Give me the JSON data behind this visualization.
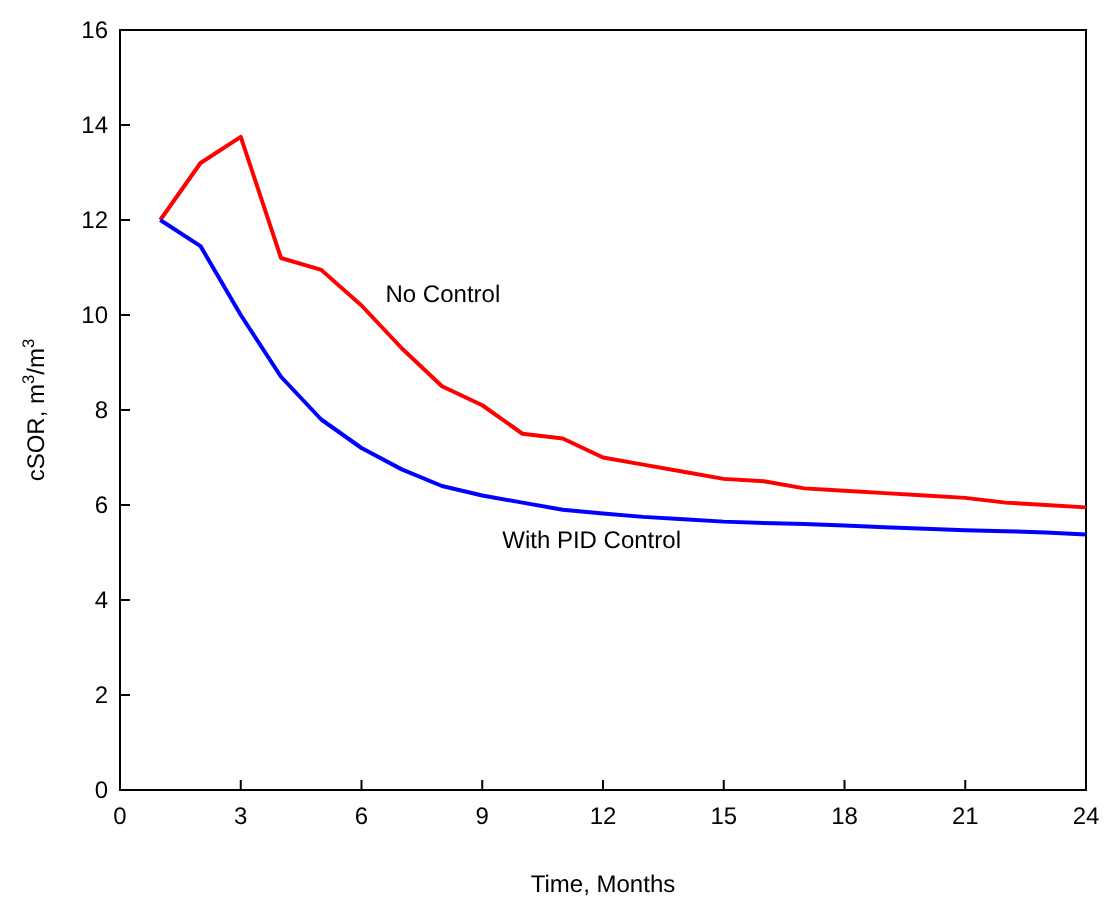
{
  "chart_data": {
    "type": "line",
    "xlabel": "Time, Months",
    "ylabel": "cSOR, m$^{3}$/m$^{3}$",
    "x": [
      1,
      2,
      3,
      4,
      5,
      6,
      7,
      8,
      9,
      10,
      11,
      12,
      13,
      14,
      15,
      16,
      17,
      18,
      19,
      20,
      21,
      22,
      23,
      24
    ],
    "series": [
      {
        "name": "No Control",
        "color": "#ff0000",
        "values": [
          12,
          13.2,
          13.75,
          11.2,
          10.95,
          10.2,
          9.3,
          8.5,
          8.1,
          7.5,
          7.4,
          7.0,
          6.85,
          6.7,
          6.55,
          6.5,
          6.35,
          6.3,
          6.25,
          6.2,
          6.15,
          6.05,
          6.0,
          5.95
        ]
      },
      {
        "name": "With PID Control",
        "color": "#0000ff",
        "values": [
          12,
          11.45,
          10,
          8.7,
          7.8,
          7.2,
          6.75,
          6.4,
          6.2,
          6.05,
          5.9,
          5.82,
          5.75,
          5.7,
          5.65,
          5.62,
          5.6,
          5.57,
          5.53,
          5.5,
          5.47,
          5.45,
          5.42,
          5.38
        ]
      }
    ],
    "xlim": [
      0,
      24
    ],
    "xticks": [
      0,
      3,
      6,
      9,
      12,
      15,
      18,
      21,
      24
    ],
    "ylim": [
      0,
      16
    ],
    "yticks": [
      0,
      2,
      4,
      6,
      8,
      10,
      12,
      14,
      16
    ],
    "grid": false,
    "marker": "none",
    "line_style": "solid"
  }
}
